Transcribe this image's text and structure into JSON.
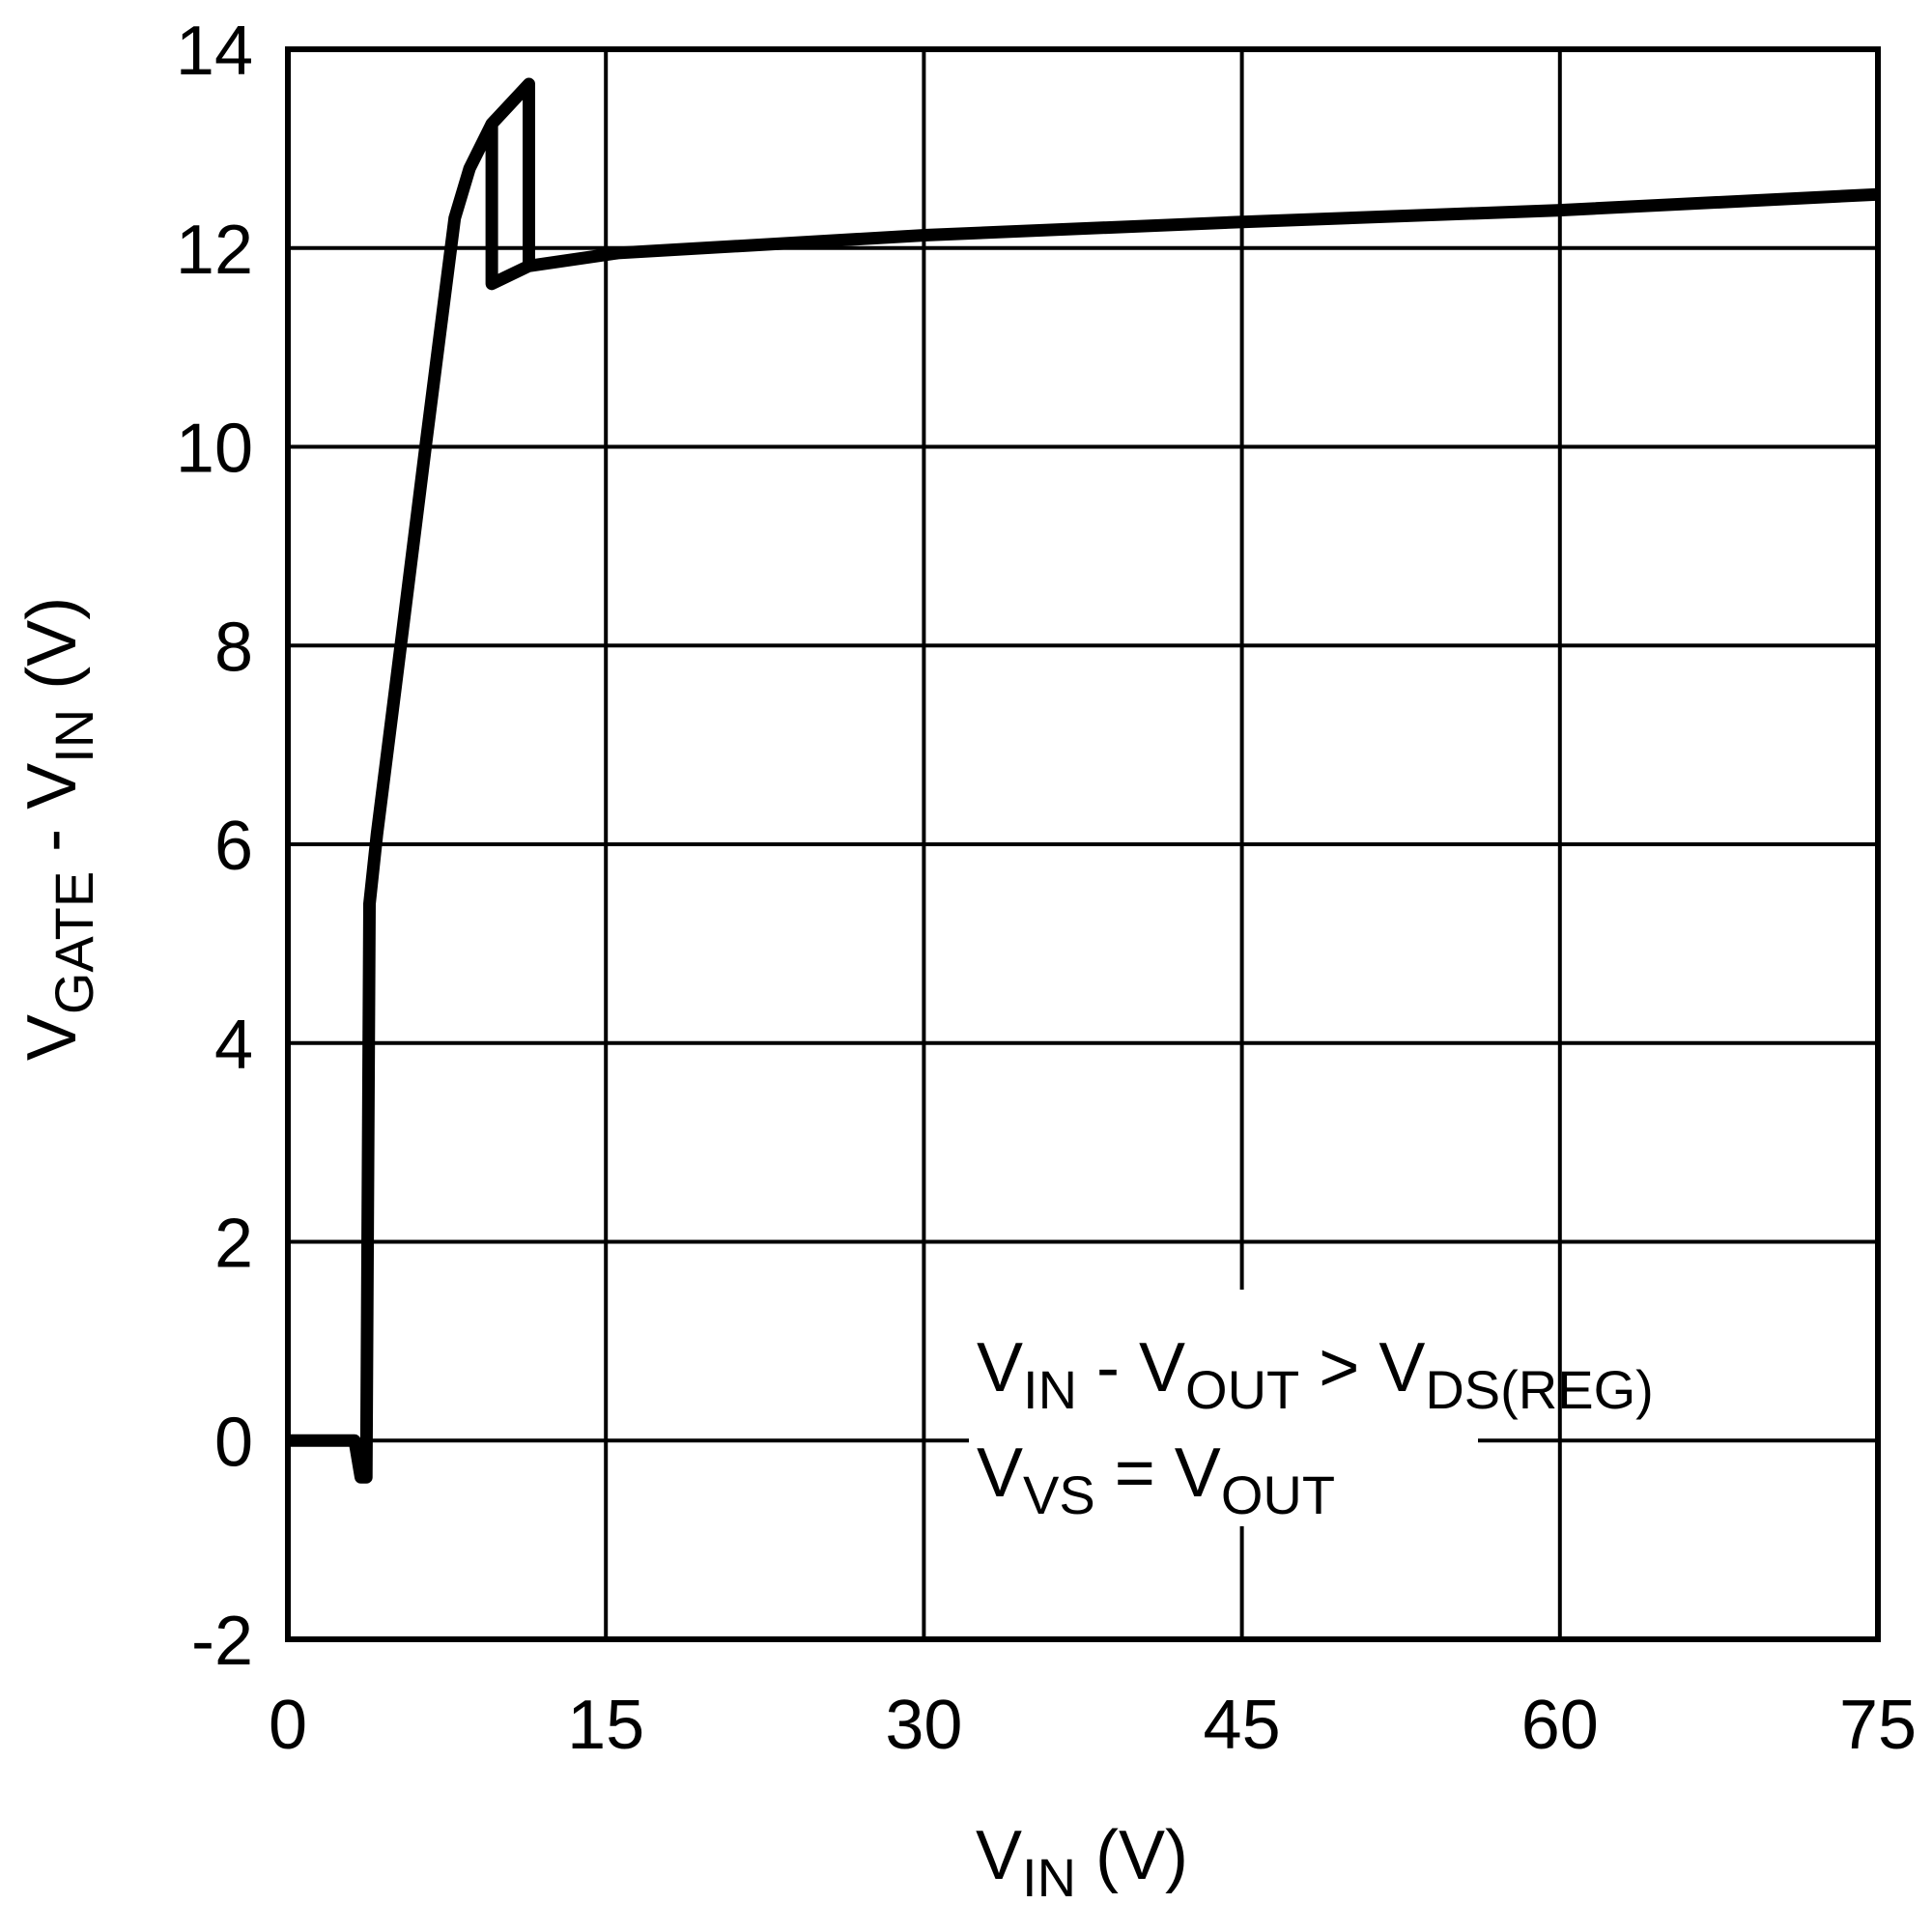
{
  "chart_data": {
    "type": "line",
    "ylabel": [
      {
        "text": "V"
      },
      {
        "sub": "GATE"
      },
      {
        "text": " - V"
      },
      {
        "sub": "IN"
      },
      {
        "text": " (V)"
      }
    ],
    "xlabel": [
      {
        "text": "V"
      },
      {
        "sub": "IN"
      },
      {
        "text": " (V)"
      }
    ],
    "annotations": [
      [
        {
          "text": "V"
        },
        {
          "sub": "IN"
        },
        {
          "text": " - V"
        },
        {
          "sub": "OUT"
        },
        {
          "text": " > V"
        },
        {
          "sub": "DS(REG)"
        }
      ],
      [
        {
          "text": "V"
        },
        {
          "sub": "VS"
        },
        {
          "text": " = V"
        },
        {
          "sub": "OUT"
        }
      ]
    ],
    "xlim": [
      0,
      75
    ],
    "xticks": [
      0,
      15,
      30,
      45,
      60,
      75
    ],
    "ylim": [
      -2,
      14
    ],
    "yticks": [
      -2,
      0,
      2,
      4,
      6,
      8,
      10,
      12,
      14
    ],
    "grid": true,
    "series": [
      {
        "color": "#000000",
        "x": [
          0,
          3.15,
          3.44,
          3.7,
          3.85,
          4.2,
          5.07,
          6.53,
          7.87,
          8.57,
          9.62,
          11.37,
          11.37,
          9.62,
          9.62,
          null,
          11.37,
          15.57,
          30.15,
          44.72,
          59.88,
          75
        ],
        "values": [
          0,
          0,
          -0.37,
          -0.37,
          5.4,
          6.1,
          7.57,
          10.06,
          12.3,
          12.8,
          13.25,
          13.65,
          11.82,
          11.64,
          13.25,
          null,
          11.82,
          11.95,
          12.13,
          12.26,
          12.38,
          12.54
        ]
      }
    ]
  }
}
